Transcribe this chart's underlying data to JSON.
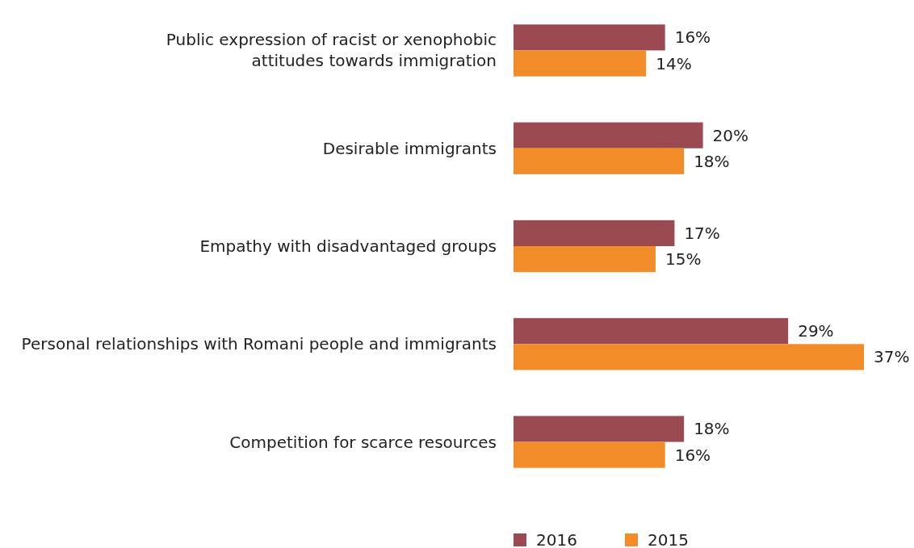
{
  "chart_data": {
    "type": "bar",
    "orientation": "horizontal",
    "categories": [
      "Public expression of racist or xenophobic\nattitudes towards immigration",
      "Desirable immigrants",
      "Empathy with disadvantaged groups",
      "Personal relationships with Romani people and immigrants",
      "Competition for scarce resources"
    ],
    "series": [
      {
        "name": "2016",
        "color": "#9b4a52",
        "values": [
          16,
          20,
          17,
          29,
          18
        ],
        "value_labels": [
          "16%",
          "20%",
          "17%",
          "29%",
          "18%"
        ]
      },
      {
        "name": "2015",
        "color": "#f28c28",
        "values": [
          14,
          18,
          15,
          37,
          16
        ],
        "value_labels": [
          "14%",
          "18%",
          "15%",
          "37%",
          "16%"
        ]
      }
    ],
    "legend": "bottom"
  }
}
